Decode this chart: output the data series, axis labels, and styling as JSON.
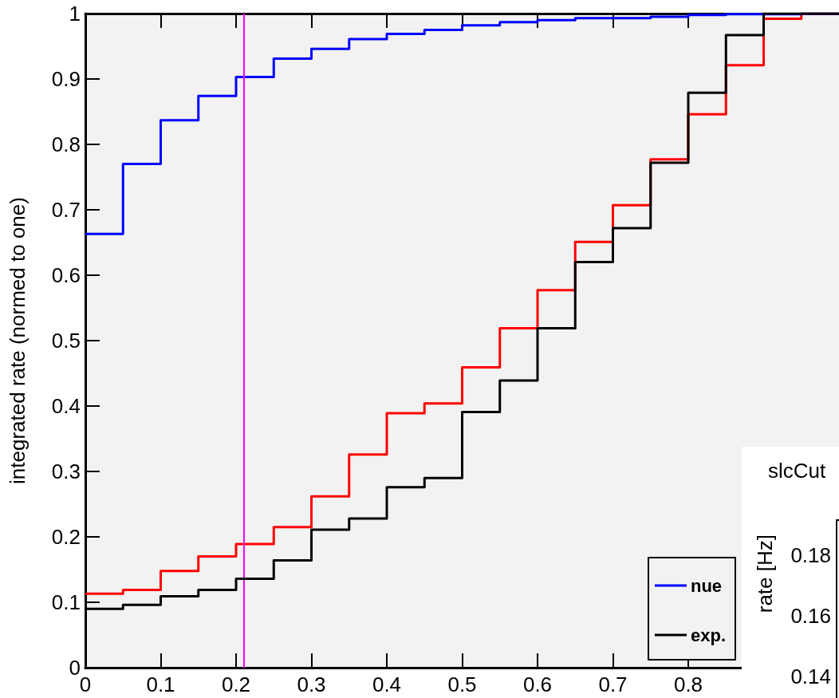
{
  "chart_data": [
    {
      "type": "step",
      "ylabel": "integrated rate (normed to one)",
      "x": [
        0,
        0.05,
        0.1,
        0.15,
        0.2,
        0.25,
        0.3,
        0.35,
        0.4,
        0.45,
        0.5,
        0.55,
        0.6,
        0.65,
        0.7,
        0.75,
        0.8,
        0.85,
        0.9,
        0.95,
        1
      ],
      "series": [
        {
          "color": "#ff0000",
          "values": [
            0.113,
            0.119,
            0.148,
            0.17,
            0.189,
            0.215,
            0.262,
            0.326,
            0.389,
            0.404,
            0.459,
            0.519,
            0.577,
            0.651,
            0.707,
            0.777,
            0.846,
            0.921,
            0.992,
            1.0,
            1.0
          ]
        },
        {
          "name": "nue",
          "color": "#0000ff",
          "values": [
            0.663,
            0.77,
            0.837,
            0.874,
            0.903,
            0.931,
            0.946,
            0.961,
            0.969,
            0.975,
            0.982,
            0.987,
            0.99,
            0.993,
            0.993,
            0.995,
            0.998,
            0.999,
            0.999,
            1.0,
            1.0
          ]
        },
        {
          "name": "exp.",
          "color": "#000000",
          "values": [
            0.09,
            0.096,
            0.109,
            0.119,
            0.136,
            0.164,
            0.211,
            0.228,
            0.276,
            0.29,
            0.391,
            0.439,
            0.519,
            0.62,
            0.672,
            0.772,
            0.879,
            0.967,
            1.0,
            1.0,
            1.0
          ]
        }
      ],
      "xlim": [
        0,
        1
      ],
      "xticks": [
        0,
        0.1,
        0.2,
        0.3,
        0.4,
        0.5,
        0.6,
        0.7,
        0.8
      ],
      "ylim": [
        0,
        1
      ],
      "yticks": [
        0,
        0.1,
        0.2,
        0.3,
        0.4,
        0.5,
        0.6,
        0.7,
        0.8,
        0.9,
        1
      ],
      "ref_lines": [
        {
          "axis": "x",
          "value": 0.21,
          "color": "#ff00ff"
        }
      ],
      "grid": false,
      "legend": "bottom right",
      "marker": "none",
      "line_style": "solid"
    },
    {
      "type": "other",
      "title": "slcCut",
      "ylabel": "rate [Hz]",
      "annotations": [
        "0.18",
        "0.16",
        "0.14"
      ]
    }
  ]
}
